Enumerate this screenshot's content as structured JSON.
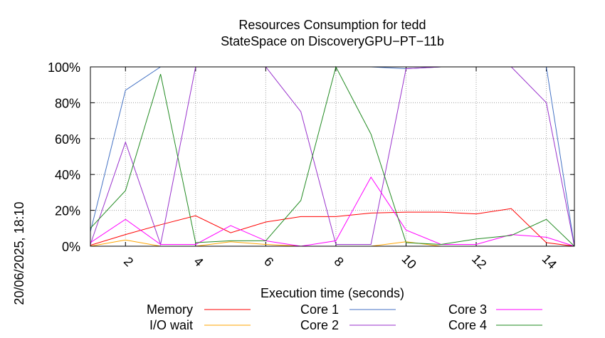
{
  "chart_data": {
    "type": "line",
    "title": [
      "Resources Consumption for tedd",
      "StateSpace on DiscoveryGPU−PT−11b"
    ],
    "xlabel": "Execution time (seconds)",
    "ylabel": "",
    "side_label": "20/06/2025, 18:10",
    "xlim": [
      1,
      14.8
    ],
    "ylim": [
      0,
      100
    ],
    "x_ticks": [
      2,
      4,
      6,
      8,
      10,
      12,
      14
    ],
    "y_ticks": [
      0,
      20,
      40,
      60,
      80,
      100
    ],
    "y_tick_labels": [
      "0%",
      "20%",
      "40%",
      "60%",
      "80%",
      "100%"
    ],
    "grid": true,
    "legend_placement": "bottom",
    "series": [
      {
        "name": "Memory",
        "color": "#ff0000",
        "x": [
          1,
          2,
          3,
          4,
          5,
          6,
          7,
          8,
          9,
          10,
          11,
          12,
          13,
          14,
          14.8
        ],
        "y": [
          0.5,
          6.5,
          12,
          17,
          7.5,
          13.5,
          16.5,
          16.5,
          18.5,
          19,
          19,
          18,
          21,
          2,
          0
        ]
      },
      {
        "name": "I/O wait",
        "color": "#ffa500",
        "x": [
          1,
          2,
          3,
          4,
          5,
          6,
          7,
          8,
          9,
          10,
          11,
          12,
          13,
          14,
          14.8
        ],
        "y": [
          0,
          3.5,
          0,
          0,
          2.5,
          1,
          0,
          0,
          0,
          2.5,
          0,
          0,
          0,
          0,
          0
        ]
      },
      {
        "name": "Core 1",
        "color": "#4472c4",
        "x": [
          1,
          2,
          3,
          4,
          5,
          6,
          7,
          8,
          9,
          10,
          11,
          12,
          13,
          14,
          14.8
        ],
        "y": [
          8,
          87,
          100,
          100,
          100,
          100,
          100,
          100,
          100,
          99,
          100,
          100,
          100,
          100,
          0
        ]
      },
      {
        "name": "Core 2",
        "color": "#9932cc",
        "x": [
          1,
          2,
          3,
          4,
          5,
          6,
          7,
          8,
          9,
          10,
          11,
          12,
          13,
          14,
          14.8
        ],
        "y": [
          1,
          58,
          1,
          100,
          100,
          100,
          75,
          1,
          1,
          99,
          100,
          100,
          100,
          80,
          0
        ]
      },
      {
        "name": "Core 3",
        "color": "#ff00ff",
        "x": [
          1,
          2,
          3,
          4,
          5,
          6,
          7,
          8,
          9,
          10,
          11,
          12,
          13,
          14,
          14.8
        ],
        "y": [
          2,
          15,
          1,
          1,
          11.5,
          3,
          0,
          3,
          38.5,
          9,
          1,
          1,
          6.5,
          5,
          0
        ]
      },
      {
        "name": "Core 4",
        "color": "#228b22",
        "x": [
          1,
          2,
          3,
          4,
          5,
          6,
          7,
          8,
          9,
          10,
          11,
          12,
          13,
          14,
          14.8
        ],
        "y": [
          10,
          31,
          96,
          2,
          3,
          3,
          25.5,
          100,
          62.5,
          2,
          1,
          4,
          6,
          15,
          0
        ]
      }
    ]
  }
}
